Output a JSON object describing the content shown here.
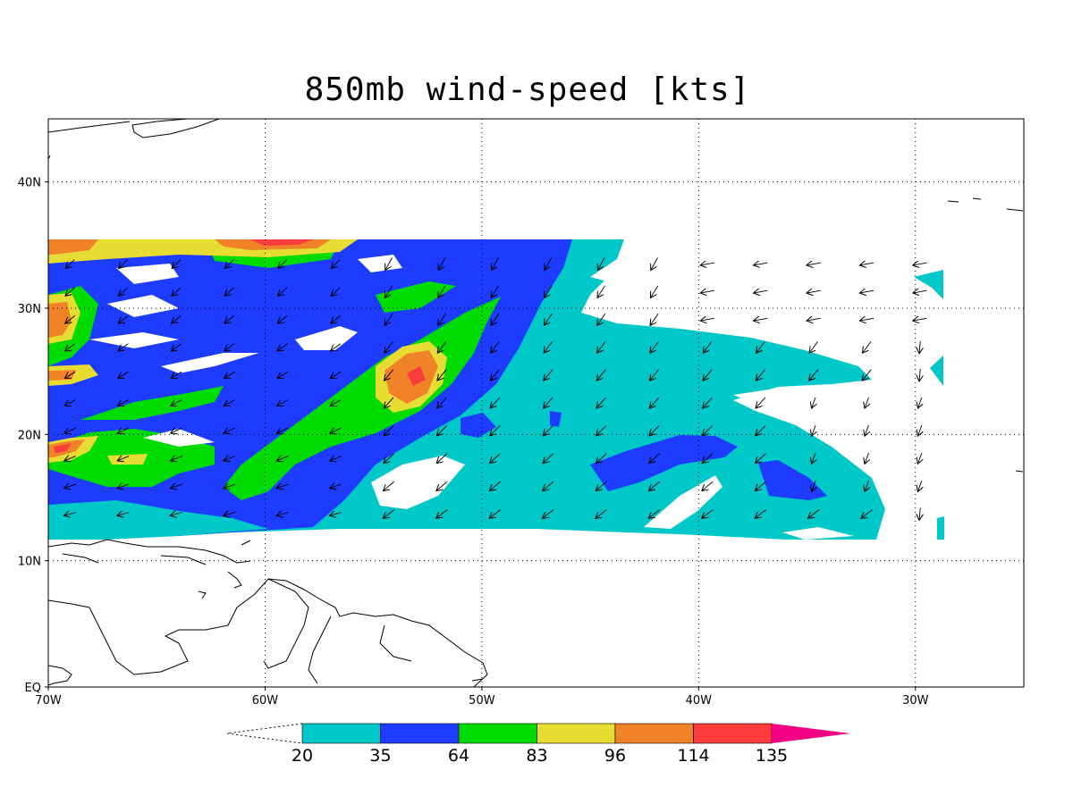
{
  "title": "850mb wind-speed [kts]",
  "map": {
    "lon_range": [
      -70,
      -25
    ],
    "lat_range": [
      0,
      45
    ],
    "grid": "dotted",
    "lon_ticks": [
      {
        "value": -70,
        "label": "70W"
      },
      {
        "value": -60,
        "label": "60W"
      },
      {
        "value": -50,
        "label": "50W"
      },
      {
        "value": -40,
        "label": "40W"
      },
      {
        "value": -30,
        "label": "30W"
      }
    ],
    "lat_ticks": [
      {
        "value": 0,
        "label": "EQ"
      },
      {
        "value": 10,
        "label": "10N"
      },
      {
        "value": 20,
        "label": "20N"
      },
      {
        "value": 30,
        "label": "30N"
      },
      {
        "value": 40,
        "label": "40N"
      }
    ],
    "data_region": {
      "lon_min": -70,
      "lon_max": -29,
      "lat_min": 11.8,
      "lat_max": 35.5
    }
  },
  "colorbar": {
    "labels": [
      "20",
      "35",
      "64",
      "83",
      "96",
      "114",
      "135"
    ],
    "colors": [
      "#00c8c8",
      "#1e3cff",
      "#00dc00",
      "#e6dc32",
      "#f08228",
      "#fa3c3c",
      "#f00082"
    ]
  }
}
